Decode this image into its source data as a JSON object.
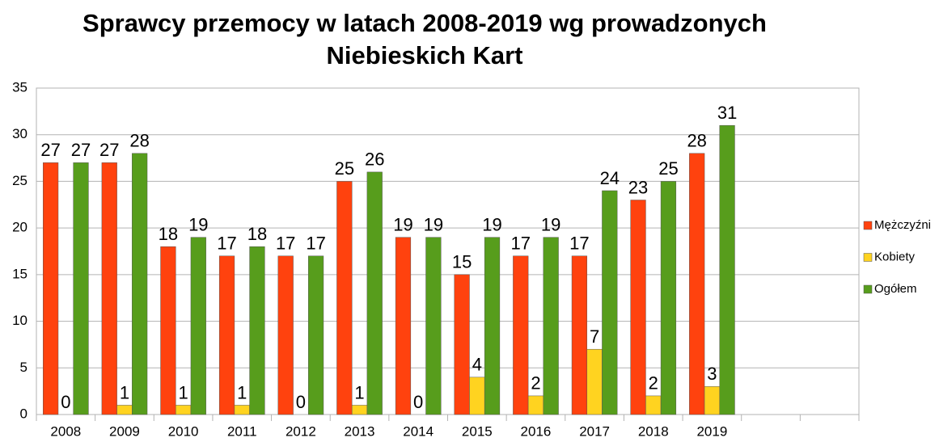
{
  "chart_data": {
    "type": "bar",
    "title": [
      "Sprawcy przemocy w latach 2008-2019 wg prowadzonych",
      "Niebieskich Kart"
    ],
    "categories": [
      "2008",
      "2009",
      "2010",
      "2011",
      "2012",
      "2013",
      "2014",
      "2015",
      "2016",
      "2017",
      "2018",
      "2019",
      null,
      null
    ],
    "series": [
      {
        "name": "Mężczyźni",
        "color": "#ff420e",
        "values": [
          27,
          27,
          18,
          17,
          17,
          25,
          19,
          15,
          17,
          17,
          23,
          28,
          null,
          null
        ]
      },
      {
        "name": "Kobiety",
        "color": "#ffd320",
        "values": [
          0,
          1,
          1,
          1,
          0,
          1,
          0,
          4,
          2,
          7,
          2,
          3,
          null,
          null
        ]
      },
      {
        "name": "Ogółem",
        "color": "#579d1c",
        "values": [
          27,
          28,
          19,
          18,
          17,
          26,
          19,
          19,
          19,
          24,
          25,
          31,
          null,
          null
        ]
      }
    ],
    "ylim": [
      0,
      35
    ],
    "yticks": [
      0,
      5,
      10,
      15,
      20,
      25,
      30,
      35
    ],
    "grid": true,
    "legend": "right"
  }
}
